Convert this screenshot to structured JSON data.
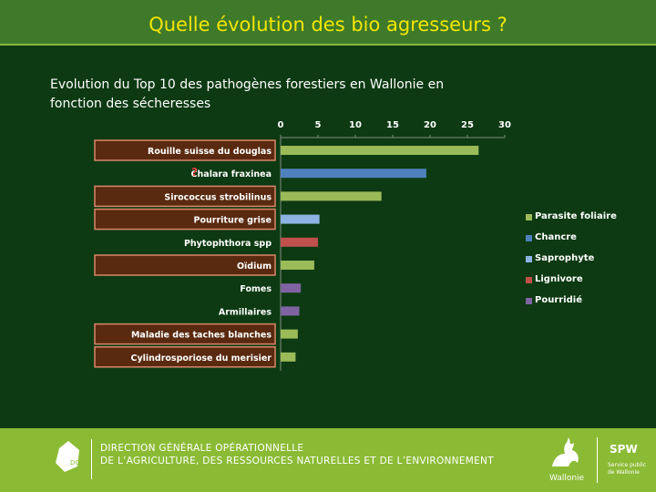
{
  "header": {
    "title": "Quelle évolution des bio agresseurs ?"
  },
  "subtitle": "Evolution du Top 10 des pathogènes forestiers en Wallonie en fonction des sécheresses",
  "chart_data": {
    "type": "bar",
    "orientation": "horizontal",
    "title": "",
    "xlim": [
      0,
      30
    ],
    "xticks": [
      0,
      5,
      10,
      15,
      20,
      25,
      30
    ],
    "xtick_labels": [
      "0",
      "5",
      "10",
      "15",
      "20",
      "25",
      "30"
    ],
    "xaxis_position": "top",
    "grid": false,
    "legend_position": "right",
    "categories": [
      "Rouille suisse du douglas",
      "Chalara fraxinea",
      "Sirococcus strobilinus",
      "Pourriture grise",
      "Phytophthora spp",
      "Oïdium",
      "Fomes",
      "Armillaires",
      "Maladie des taches blanches",
      "Cylindrosporiose du merisier"
    ],
    "values": [
      26.5,
      19.5,
      13.5,
      5.2,
      5.0,
      4.5,
      2.7,
      2.5,
      2.3,
      2.0
    ],
    "value_types": [
      "Parasite foliaire",
      "Chancre",
      "Parasite foliaire",
      "Saprophyte",
      "Lignivore",
      "Parasite foliaire",
      "Pourridié",
      "Pourridié",
      "Parasite foliaire",
      "Parasite foliaire"
    ],
    "highlighted": [
      true,
      false,
      true,
      true,
      false,
      true,
      false,
      false,
      true,
      true
    ],
    "question_mark": "?",
    "question_mark_index": 1,
    "legend": [
      {
        "name": "Parasite foliaire",
        "color": "#9bbb59"
      },
      {
        "name": "Chancre",
        "color": "#4f81bd"
      },
      {
        "name": "Saprophyte",
        "color": "#8db3e2"
      },
      {
        "name": "Lignivore",
        "color": "#c0504d"
      },
      {
        "name": "Pourridié",
        "color": "#8064a2"
      }
    ]
  },
  "colors": {
    "background": "#0d3a12",
    "title": "#f2e600",
    "highlight_fill": "#5a2a10",
    "highlight_border": "#d9866b",
    "axis": "#7f8f7f",
    "footer": "#8bbb35"
  },
  "footer": {
    "line1": "DIRECTION GÉNÉRALE OPÉRATIONNELLE",
    "line2": "DE L’AGRICULTURE, DES RESSOURCES NATURELLES ET DE L’ENVIRONNEMENT",
    "logo_left_text": "DGO3",
    "logo_wallonie": "Wallonie",
    "logo_spw": "SPW",
    "logo_spw_sub": "Service public de Wallonie"
  },
  "icons": {
    "left_logo": "dgo3-logo-icon",
    "rooster": "rooster-icon",
    "spw": "spw-logo-icon"
  }
}
